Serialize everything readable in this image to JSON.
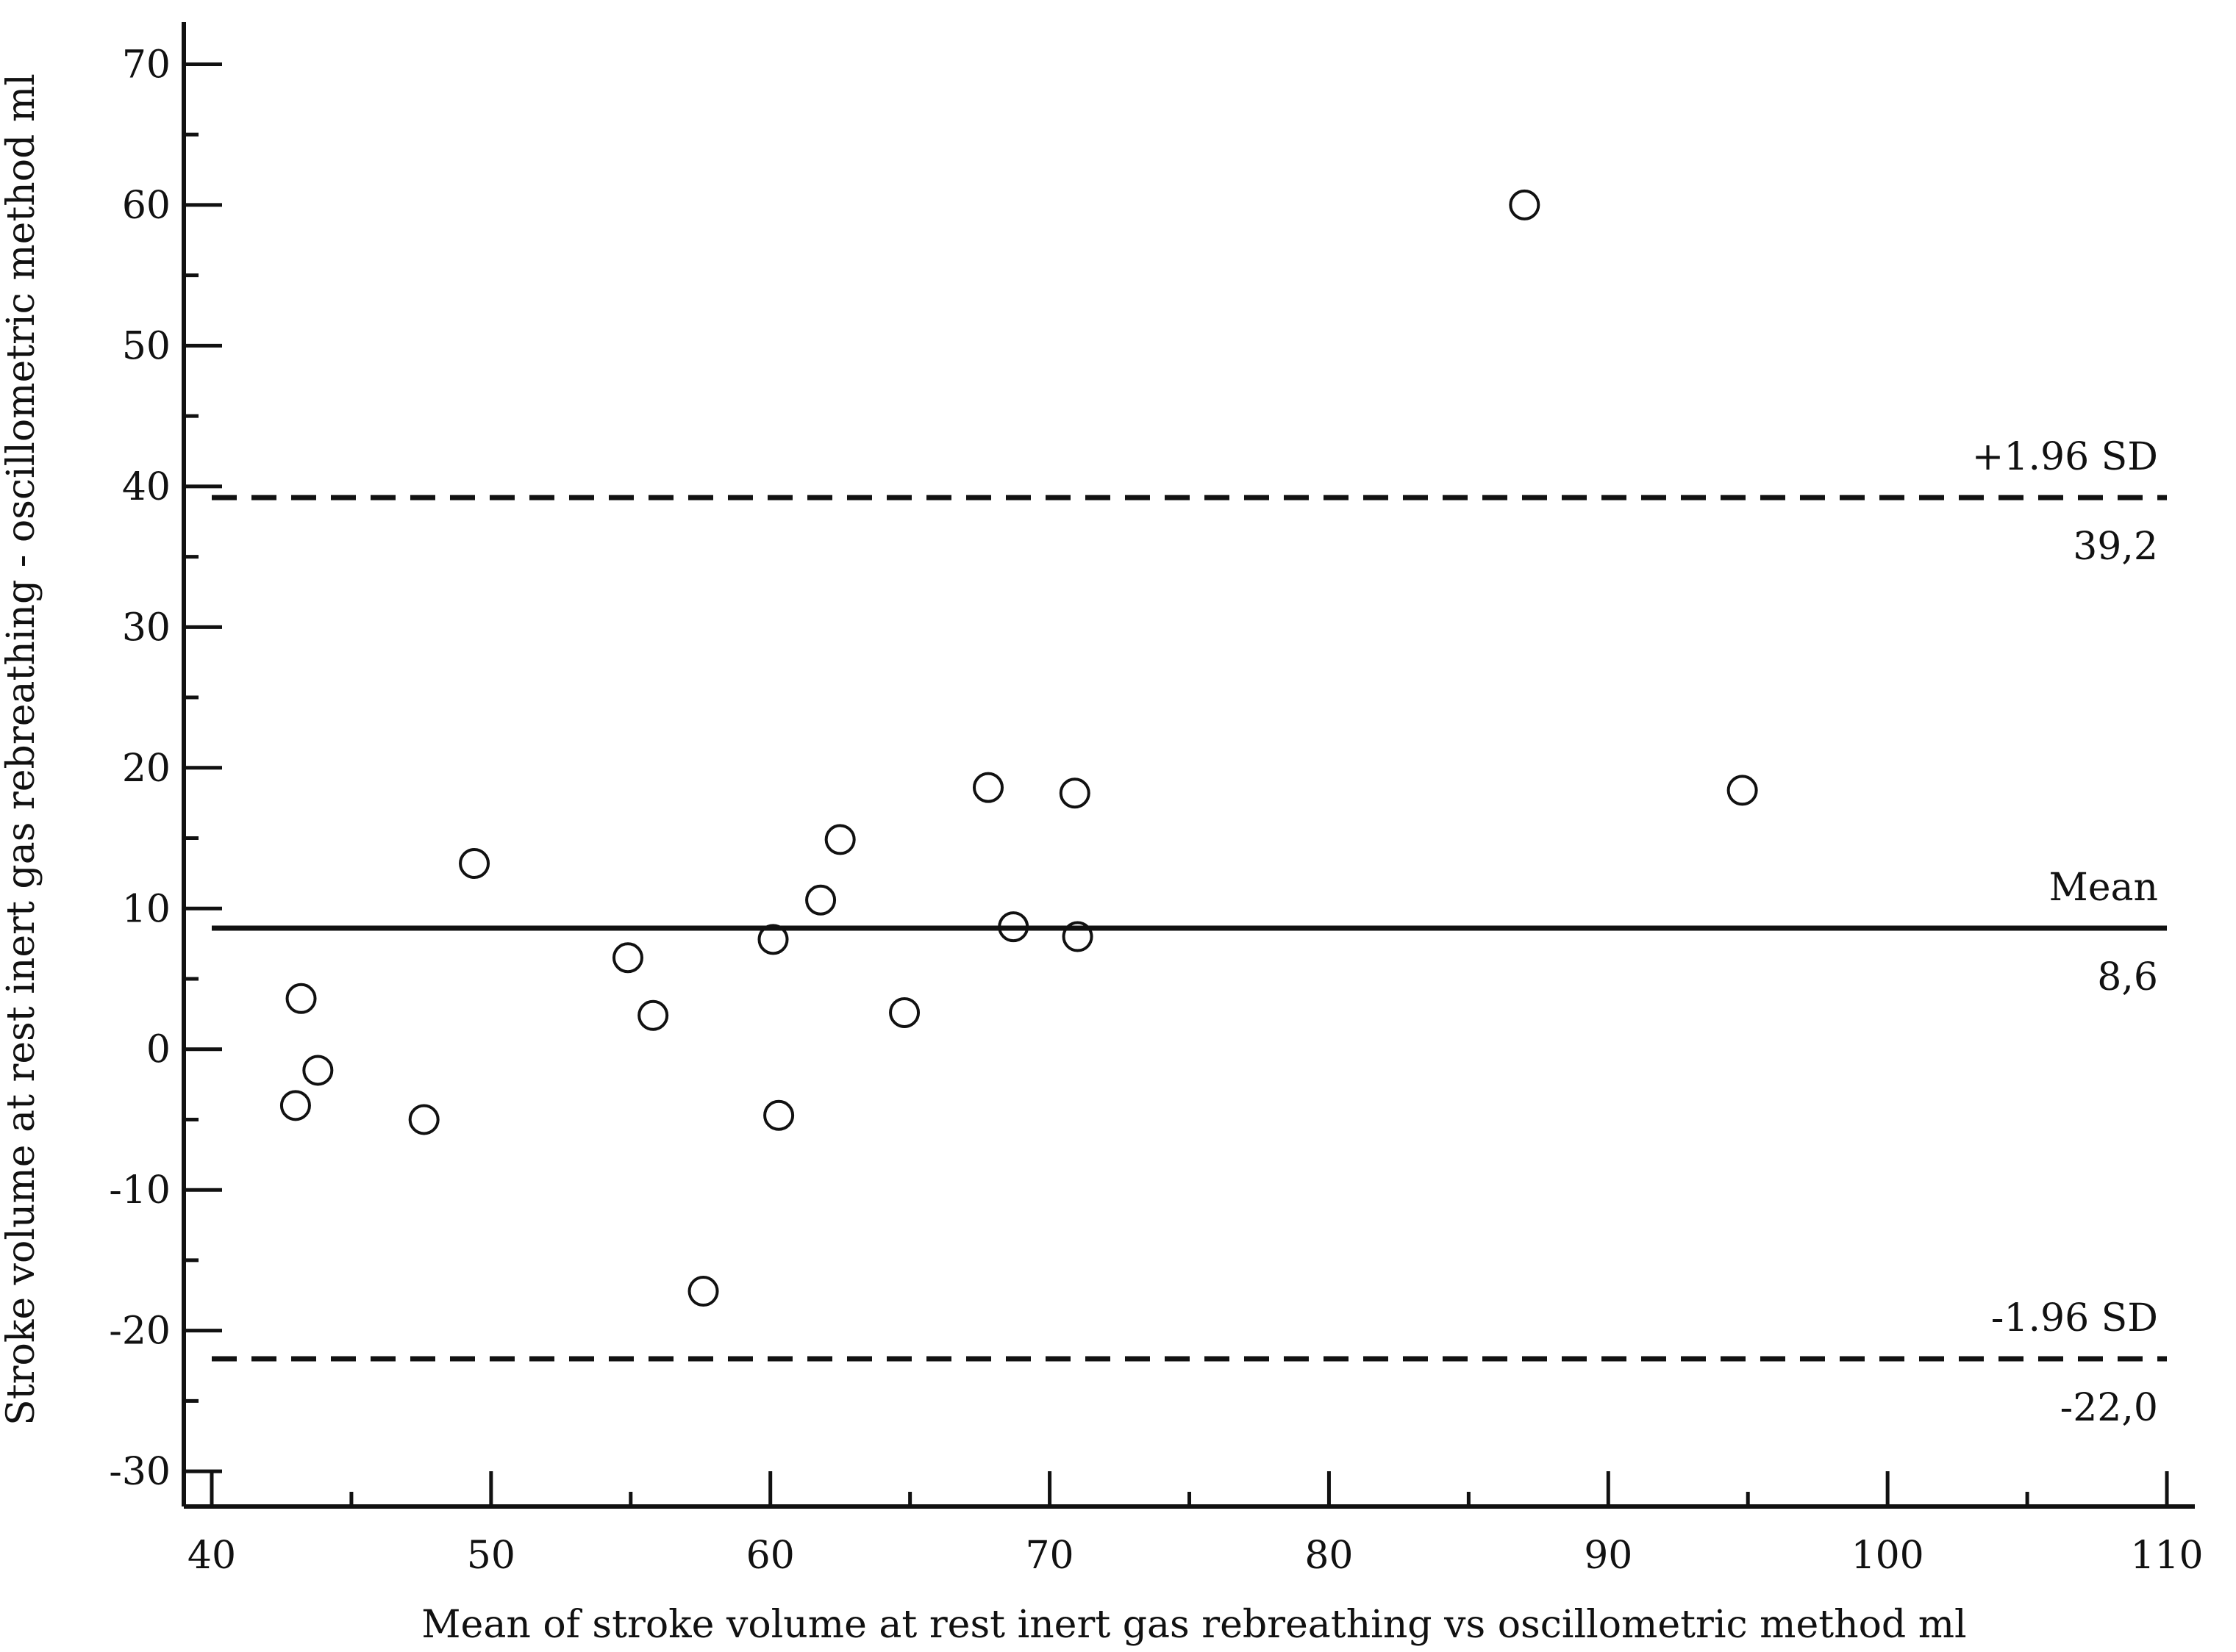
{
  "chart_data": {
    "type": "scatter",
    "title": "",
    "xlabel": "Mean of stroke volume at rest inert gas rebreathing vs oscillometric method ml",
    "ylabel": "Stroke volume at rest inert gas rebreathing - oscillometric method ml",
    "xlim": [
      39,
      111
    ],
    "ylim": [
      -32.5,
      73
    ],
    "x_ticks": [
      40,
      50,
      60,
      70,
      80,
      90,
      100,
      110
    ],
    "x_tick_labels": [
      "40",
      "50",
      "60",
      "70",
      "80",
      "90",
      "100",
      "110"
    ],
    "x_minor_step": 5,
    "y_ticks": [
      -30,
      -20,
      -10,
      0,
      10,
      20,
      30,
      40,
      50,
      60,
      70
    ],
    "y_tick_labels": [
      "-30",
      "-20",
      "-10",
      "0",
      "10",
      "20",
      "30",
      "40",
      "50",
      "60",
      "70"
    ],
    "y_minor_step": 5,
    "grid": false,
    "marker": "open-circle",
    "reference_lines": [
      {
        "y": 39.2,
        "style": "dashed",
        "label": "+1.96 SD",
        "value_label": "39,2"
      },
      {
        "y": 8.6,
        "style": "solid",
        "label": "Mean",
        "value_label": "8,6"
      },
      {
        "y": -22.0,
        "style": "dashed",
        "label": "-1.96 SD",
        "value_label": "-22,0"
      }
    ],
    "series": [
      {
        "points": [
          {
            "x": 43.0,
            "y": -4.0
          },
          {
            "x": 43.2,
            "y": 3.6
          },
          {
            "x": 43.8,
            "y": -1.5
          },
          {
            "x": 47.6,
            "y": -5.0
          },
          {
            "x": 49.4,
            "y": 13.2
          },
          {
            "x": 54.9,
            "y": 6.5
          },
          {
            "x": 55.8,
            "y": 2.4
          },
          {
            "x": 57.6,
            "y": -17.2
          },
          {
            "x": 60.1,
            "y": 7.8
          },
          {
            "x": 60.3,
            "y": -4.7
          },
          {
            "x": 61.8,
            "y": 10.6
          },
          {
            "x": 62.5,
            "y": 14.9
          },
          {
            "x": 64.8,
            "y": 2.6
          },
          {
            "x": 67.8,
            "y": 18.6
          },
          {
            "x": 68.7,
            "y": 8.7
          },
          {
            "x": 70.9,
            "y": 18.2
          },
          {
            "x": 71.0,
            "y": 8.0
          },
          {
            "x": 87.0,
            "y": 60.0
          },
          {
            "x": 94.8,
            "y": 18.4
          }
        ]
      }
    ]
  }
}
